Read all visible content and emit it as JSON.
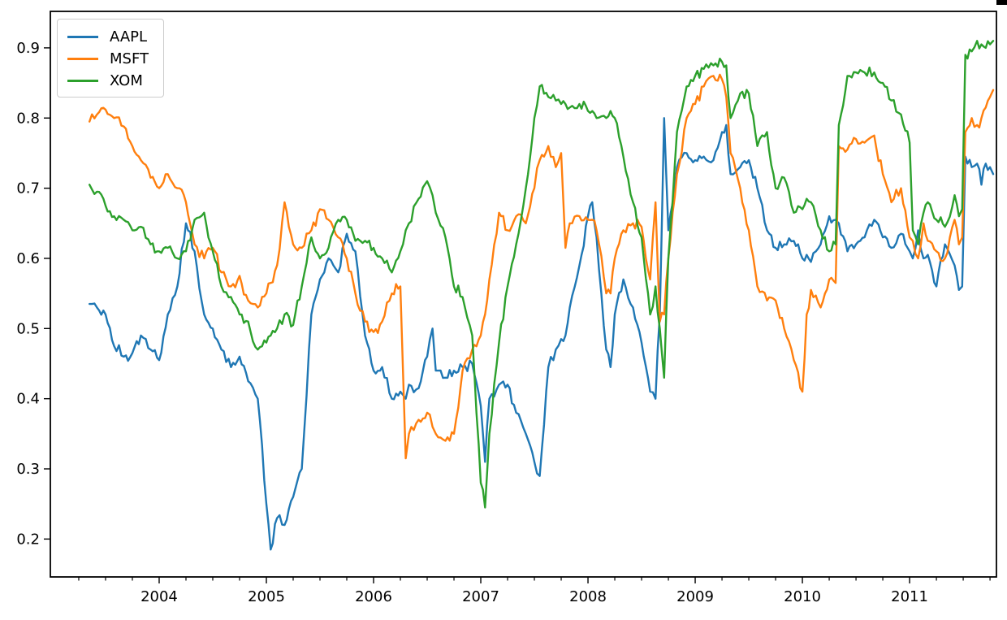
{
  "figure": {
    "background": "#ffffff",
    "frame_color": "#000000"
  },
  "legend": {
    "entries": [
      {
        "label": "AAPL",
        "color": "#1f77b4"
      },
      {
        "label": "MSFT",
        "color": "#ff7f0e"
      },
      {
        "label": "XOM",
        "color": "#2ca02c"
      }
    ]
  },
  "chart_data": {
    "type": "line",
    "title": "",
    "xlabel": "",
    "ylabel": "",
    "description": "Rolling correlation-style time series for AAPL, MSFT and XOM, mid-2003 through late 2011, values between ~0.18 and ~0.92",
    "grid": false,
    "legend_position": "upper left",
    "xlim": [
      2002.985,
      2011.81
    ],
    "ylim": [
      0.146,
      0.952
    ],
    "x_unit": "decimal_year",
    "x_major_ticks": [
      2004,
      2005,
      2006,
      2007,
      2008,
      2009,
      2010,
      2011
    ],
    "x_tick_labels": [
      "2004",
      "2005",
      "2006",
      "2007",
      "2008",
      "2009",
      "2010",
      "2011"
    ],
    "x_minor_tick_interval": 0.25,
    "y_ticks": [
      0.2,
      0.3,
      0.4,
      0.5,
      0.6,
      0.7,
      0.8,
      0.9
    ],
    "y_tick_labels": [
      "0.2",
      "0.3",
      "0.4",
      "0.5",
      "0.6",
      "0.7",
      "0.8",
      "0.9"
    ],
    "x": [
      2003.35,
      2003.42,
      2003.5,
      2003.58,
      2003.67,
      2003.75,
      2003.83,
      2003.92,
      2004.0,
      2004.08,
      2004.17,
      2004.25,
      2004.33,
      2004.42,
      2004.5,
      2004.58,
      2004.67,
      2004.75,
      2004.83,
      2004.92,
      2005.0,
      2005.04,
      2005.1,
      2005.17,
      2005.25,
      2005.33,
      2005.42,
      2005.5,
      2005.58,
      2005.67,
      2005.75,
      2005.83,
      2005.92,
      2006.0,
      2006.08,
      2006.17,
      2006.25,
      2006.3,
      2006.33,
      2006.42,
      2006.5,
      2006.55,
      2006.58,
      2006.67,
      2006.75,
      2006.83,
      2006.92,
      2007.0,
      2007.04,
      2007.08,
      2007.17,
      2007.25,
      2007.33,
      2007.42,
      2007.5,
      2007.55,
      2007.63,
      2007.7,
      2007.75,
      2007.79,
      2007.83,
      2007.92,
      2008.0,
      2008.04,
      2008.08,
      2008.17,
      2008.21,
      2008.25,
      2008.33,
      2008.42,
      2008.5,
      2008.58,
      2008.63,
      2008.67,
      2008.71,
      2008.75,
      2008.83,
      2008.92,
      2009.0,
      2009.08,
      2009.17,
      2009.25,
      2009.29,
      2009.33,
      2009.42,
      2009.5,
      2009.58,
      2009.67,
      2009.75,
      2009.83,
      2009.92,
      2010.0,
      2010.04,
      2010.08,
      2010.17,
      2010.25,
      2010.31,
      2010.34,
      2010.42,
      2010.5,
      2010.58,
      2010.67,
      2010.75,
      2010.83,
      2010.92,
      2011.0,
      2011.03,
      2011.08,
      2011.13,
      2011.17,
      2011.25,
      2011.33,
      2011.42,
      2011.46,
      2011.49,
      2011.52,
      2011.58,
      2011.63,
      2011.67,
      2011.71,
      2011.75,
      2011.78
    ],
    "series": [
      {
        "name": "AAPL",
        "color": "#1f77b4",
        "values": [
          0.535,
          0.53,
          0.52,
          0.475,
          0.46,
          0.465,
          0.49,
          0.47,
          0.455,
          0.52,
          0.56,
          0.65,
          0.61,
          0.52,
          0.5,
          0.47,
          0.445,
          0.46,
          0.425,
          0.4,
          0.25,
          0.185,
          0.23,
          0.22,
          0.26,
          0.3,
          0.52,
          0.57,
          0.6,
          0.58,
          0.635,
          0.61,
          0.49,
          0.44,
          0.445,
          0.4,
          0.41,
          0.4,
          0.42,
          0.415,
          0.46,
          0.5,
          0.44,
          0.43,
          0.44,
          0.445,
          0.45,
          0.39,
          0.31,
          0.4,
          0.42,
          0.42,
          0.38,
          0.35,
          0.31,
          0.29,
          0.445,
          0.47,
          0.485,
          0.49,
          0.53,
          0.59,
          0.66,
          0.68,
          0.63,
          0.47,
          0.445,
          0.52,
          0.57,
          0.53,
          0.48,
          0.41,
          0.4,
          0.52,
          0.8,
          0.64,
          0.73,
          0.75,
          0.74,
          0.745,
          0.74,
          0.78,
          0.79,
          0.72,
          0.73,
          0.74,
          0.7,
          0.64,
          0.615,
          0.62,
          0.625,
          0.6,
          0.605,
          0.595,
          0.62,
          0.66,
          0.655,
          0.65,
          0.61,
          0.62,
          0.63,
          0.655,
          0.63,
          0.615,
          0.635,
          0.61,
          0.6,
          0.64,
          0.6,
          0.605,
          0.56,
          0.62,
          0.59,
          0.555,
          0.56,
          0.745,
          0.73,
          0.735,
          0.705,
          0.735,
          0.73,
          0.72
        ]
      },
      {
        "name": "MSFT",
        "color": "#ff7f0e",
        "values": [
          0.795,
          0.805,
          0.812,
          0.8,
          0.788,
          0.76,
          0.74,
          0.715,
          0.7,
          0.72,
          0.7,
          0.68,
          0.62,
          0.6,
          0.615,
          0.58,
          0.56,
          0.575,
          0.54,
          0.53,
          0.55,
          0.565,
          0.59,
          0.68,
          0.62,
          0.615,
          0.64,
          0.67,
          0.655,
          0.63,
          0.6,
          0.55,
          0.51,
          0.495,
          0.51,
          0.55,
          0.56,
          0.315,
          0.35,
          0.37,
          0.38,
          0.36,
          0.35,
          0.34,
          0.35,
          0.44,
          0.47,
          0.49,
          0.52,
          0.57,
          0.665,
          0.64,
          0.66,
          0.65,
          0.7,
          0.74,
          0.76,
          0.73,
          0.75,
          0.615,
          0.65,
          0.66,
          0.655,
          0.655,
          0.64,
          0.55,
          0.55,
          0.6,
          0.64,
          0.65,
          0.645,
          0.57,
          0.68,
          0.51,
          0.52,
          0.6,
          0.72,
          0.8,
          0.82,
          0.845,
          0.86,
          0.855,
          0.83,
          0.75,
          0.7,
          0.64,
          0.56,
          0.54,
          0.54,
          0.5,
          0.455,
          0.41,
          0.52,
          0.555,
          0.53,
          0.57,
          0.565,
          0.76,
          0.755,
          0.77,
          0.765,
          0.775,
          0.72,
          0.68,
          0.7,
          0.63,
          0.625,
          0.6,
          0.65,
          0.625,
          0.61,
          0.6,
          0.655,
          0.62,
          0.63,
          0.78,
          0.8,
          0.79,
          0.8,
          0.815,
          0.83,
          0.84
        ]
      },
      {
        "name": "XOM",
        "color": "#2ca02c",
        "values": [
          0.705,
          0.695,
          0.675,
          0.66,
          0.655,
          0.64,
          0.645,
          0.62,
          0.61,
          0.615,
          0.6,
          0.61,
          0.655,
          0.665,
          0.61,
          0.56,
          0.545,
          0.52,
          0.51,
          0.47,
          0.48,
          0.49,
          0.5,
          0.52,
          0.505,
          0.56,
          0.63,
          0.6,
          0.615,
          0.655,
          0.655,
          0.625,
          0.625,
          0.615,
          0.6,
          0.58,
          0.61,
          0.64,
          0.65,
          0.685,
          0.71,
          0.69,
          0.665,
          0.63,
          0.56,
          0.545,
          0.49,
          0.28,
          0.245,
          0.35,
          0.48,
          0.56,
          0.62,
          0.7,
          0.8,
          0.845,
          0.83,
          0.825,
          0.82,
          0.82,
          0.815,
          0.82,
          0.81,
          0.81,
          0.8,
          0.8,
          0.81,
          0.8,
          0.745,
          0.68,
          0.63,
          0.52,
          0.56,
          0.5,
          0.43,
          0.6,
          0.78,
          0.845,
          0.86,
          0.87,
          0.875,
          0.88,
          0.875,
          0.8,
          0.835,
          0.835,
          0.76,
          0.78,
          0.7,
          0.715,
          0.665,
          0.67,
          0.685,
          0.68,
          0.64,
          0.61,
          0.62,
          0.79,
          0.86,
          0.865,
          0.865,
          0.865,
          0.85,
          0.825,
          0.805,
          0.765,
          0.64,
          0.62,
          0.665,
          0.68,
          0.655,
          0.645,
          0.69,
          0.66,
          0.67,
          0.89,
          0.895,
          0.91,
          0.905,
          0.9,
          0.905,
          0.91
        ]
      }
    ]
  }
}
